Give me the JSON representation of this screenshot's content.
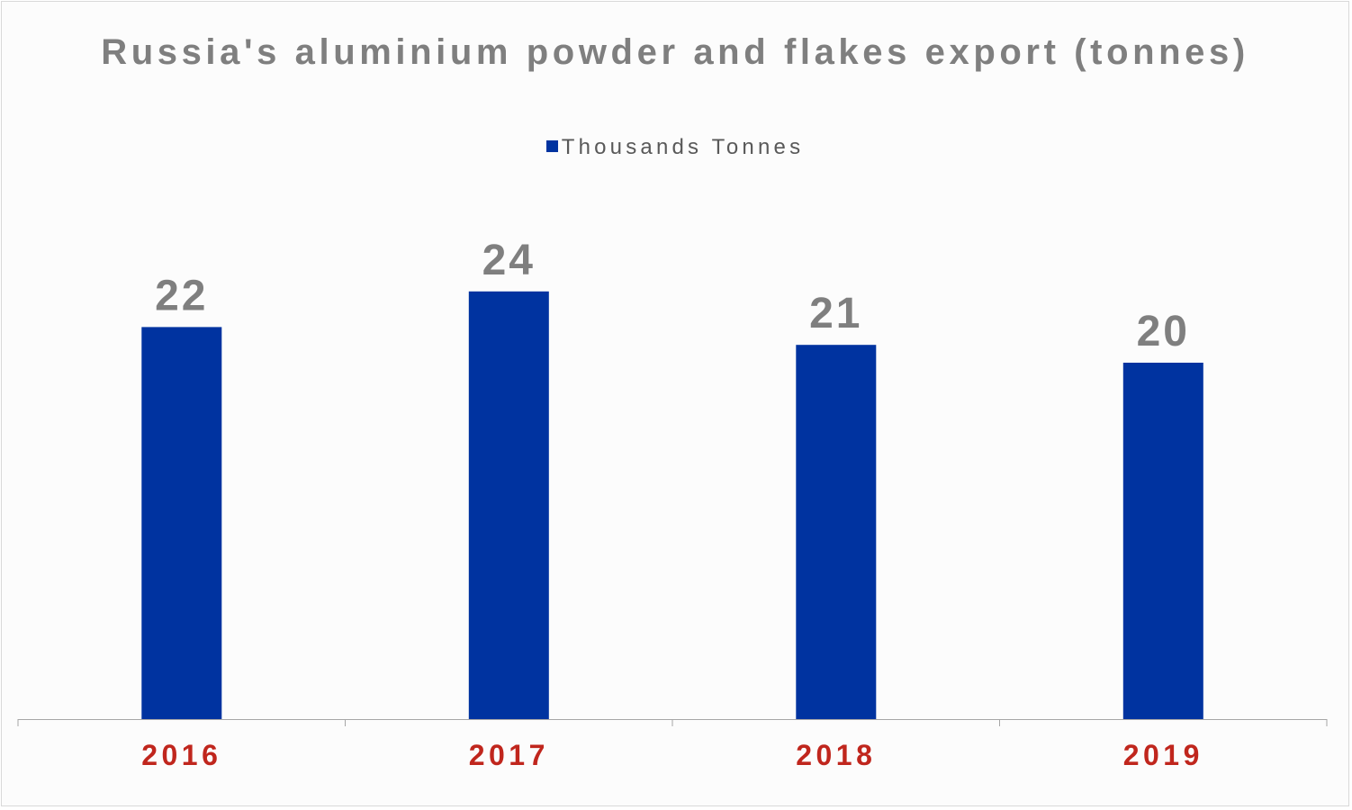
{
  "chart_data": {
    "type": "bar",
    "title": "Russia's aluminium powder and flakes export (tonnes)",
    "categories": [
      "2016",
      "2017",
      "2018",
      "2019"
    ],
    "series": [
      {
        "name": "Thousands Tonnes",
        "values": [
          22,
          24,
          21,
          20
        ],
        "color": "#0033a0"
      }
    ],
    "data_labels": [
      "22",
      "24",
      "21",
      "20"
    ],
    "xlabel": "",
    "ylabel": "",
    "ylim": [
      0,
      30
    ],
    "grid": false,
    "legend_position": "top",
    "colors": {
      "title": "#7f7f7f",
      "data_label": "#7f7f7f",
      "tick_label": "#c0261d",
      "axis": "#a6a6a6",
      "background": "#fcfcfc"
    }
  }
}
